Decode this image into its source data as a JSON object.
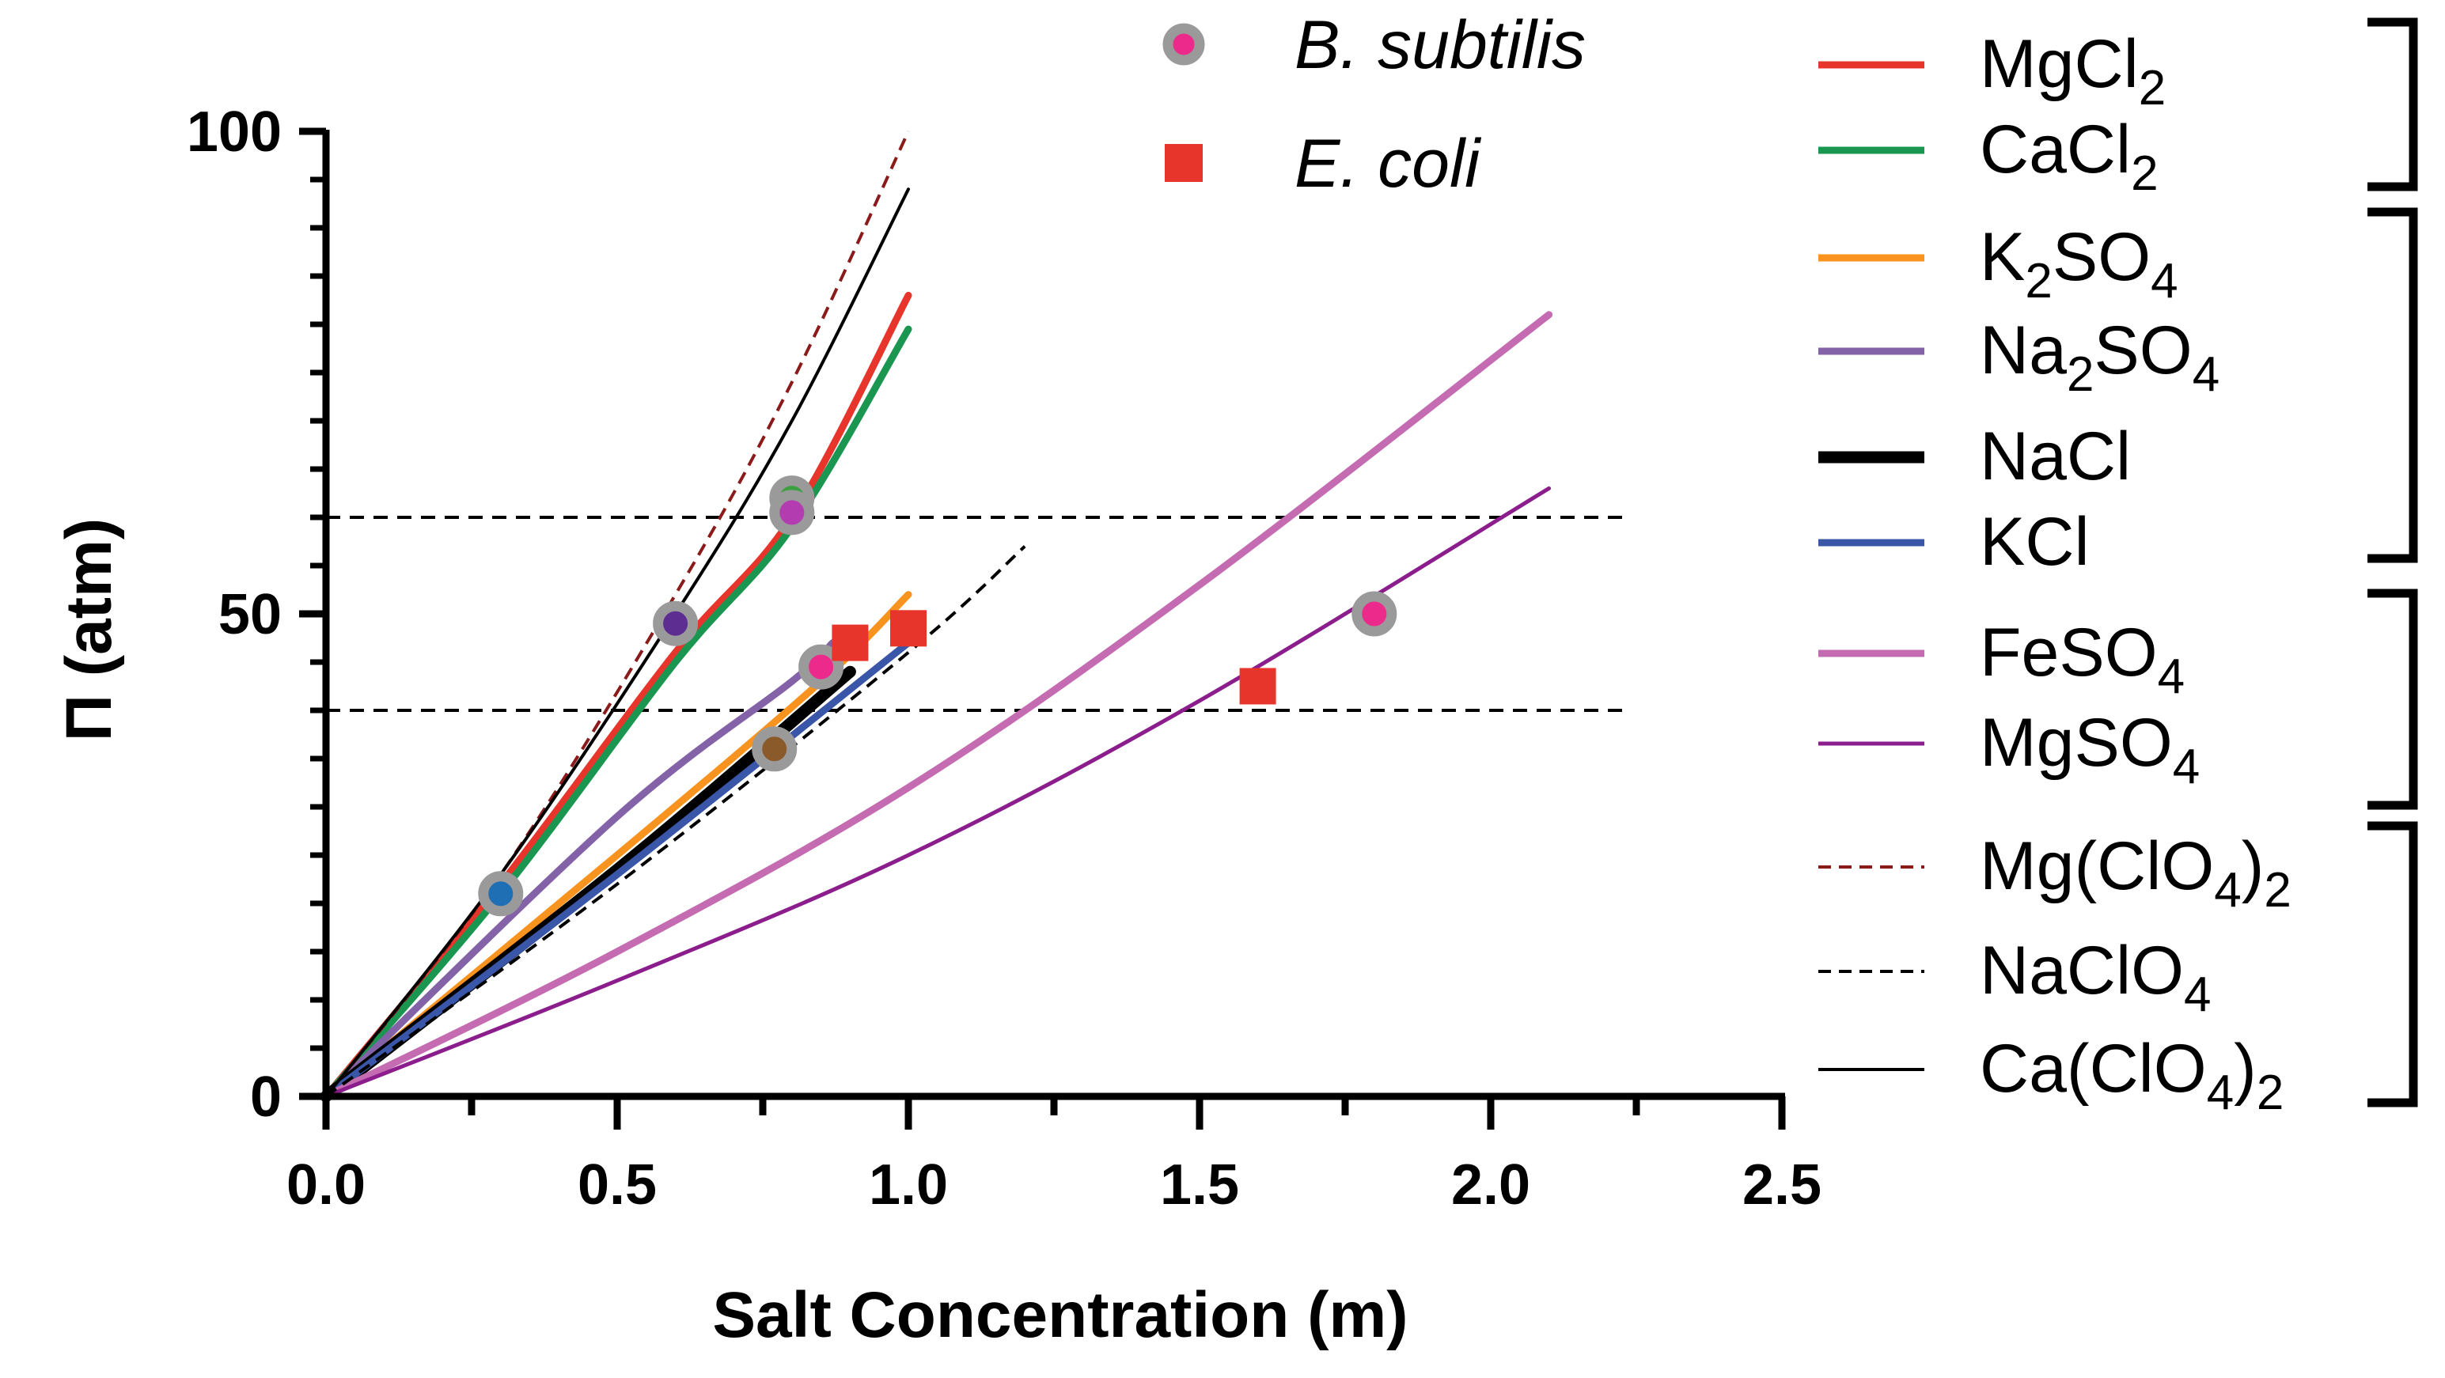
{
  "chart_data": {
    "type": "line",
    "xlabel": "Salt Concentration (m)",
    "ylabel": "Π (atm)",
    "xlim": [
      0,
      2.5
    ],
    "ylim": [
      0,
      100
    ],
    "x_ticks": [
      0.0,
      0.5,
      1.0,
      1.5,
      2.0,
      2.5
    ],
    "x_tick_labels": [
      "0.0",
      "0.5",
      "1.0",
      "1.5",
      "2.0",
      "2.5"
    ],
    "y_ticks": [
      0,
      50,
      100
    ],
    "y_tick_labels": [
      "0",
      "50",
      "100"
    ],
    "reference_lines": [
      60,
      40
    ],
    "series": [
      {
        "name": "MgCl",
        "sub": "2",
        "style": "solid",
        "color": "#e8352b",
        "width": 9,
        "x": [
          0,
          0.3,
          0.6,
          0.8,
          1.0
        ],
        "y": [
          0,
          22,
          46,
          60,
          83
        ]
      },
      {
        "name": "CaCl",
        "sub": "2",
        "style": "solid",
        "color": "#1a9650",
        "width": 9,
        "x": [
          0,
          0.3,
          0.6,
          0.8,
          1.0
        ],
        "y": [
          0,
          21,
          45,
          59,
          79.5
        ]
      },
      {
        "name": "K",
        "sub": "2",
        "tail": "SO",
        "sub2": "4",
        "style": "solid",
        "color": "#f7931e",
        "width": 9,
        "x": [
          0,
          0.5,
          0.85,
          1.0
        ],
        "y": [
          0,
          25,
          43,
          52
        ]
      },
      {
        "name": "Na",
        "sub": "2",
        "tail": "SO",
        "sub2": "4",
        "style": "solid",
        "color": "#8462a8",
        "width": 9,
        "x": [
          0,
          0.5,
          0.8,
          0.87
        ],
        "y": [
          0,
          29,
          43,
          47
        ]
      },
      {
        "name": "NaCl",
        "style": "solid",
        "color": "#000000",
        "width": 15,
        "x": [
          0,
          0.5,
          0.9
        ],
        "y": [
          0,
          23.5,
          44
        ]
      },
      {
        "name": "KCl",
        "style": "solid",
        "color": "#3a56a8",
        "width": 9,
        "x": [
          0,
          0.5,
          1.0
        ],
        "y": [
          0,
          23,
          47
        ]
      },
      {
        "name": "FeSO",
        "sub": "4",
        "style": "solid",
        "color": "#c46bb2",
        "width": 9,
        "x": [
          0,
          0.5,
          1.0,
          1.5,
          2.1
        ],
        "y": [
          0,
          15,
          32,
          53,
          81
        ]
      },
      {
        "name": "MgSO",
        "sub": "4",
        "style": "solid",
        "color": "#8b1e8c",
        "width": 5,
        "x": [
          0,
          0.5,
          1.0,
          1.5,
          2.1
        ],
        "y": [
          0,
          12,
          25,
          41,
          63
        ]
      },
      {
        "name": "Mg(ClO",
        "sub": "4",
        "tail": ")",
        "sub2": "2",
        "style": "dashed",
        "color": "#8b1a1a",
        "width": 4,
        "x": [
          0,
          0.3,
          0.6,
          0.8,
          1.0
        ],
        "y": [
          0,
          23,
          52,
          74,
          100
        ]
      },
      {
        "name": "NaClO",
        "sub": "4",
        "style": "dashed",
        "color": "#000000",
        "width": 4,
        "x": [
          0,
          0.5,
          1.0,
          1.2
        ],
        "y": [
          0,
          22,
          46,
          57
        ]
      },
      {
        "name": "Ca(ClO",
        "sub": "4",
        "tail": ")",
        "sub2": "2",
        "style": "solid",
        "color": "#000000",
        "width": 4,
        "x": [
          0,
          0.3,
          0.6,
          0.8,
          1.0
        ],
        "y": [
          0,
          23,
          50,
          70,
          94
        ]
      }
    ],
    "point_sets": [
      {
        "name": "B. subtilis",
        "marker": "circle",
        "points": [
          {
            "x": 0.3,
            "y": 21,
            "fill": "#1f6fb4"
          },
          {
            "x": 0.6,
            "y": 49,
            "fill": "#5e2d91"
          },
          {
            "x": 0.8,
            "y": 62,
            "fill": "#3aa040"
          },
          {
            "x": 0.8,
            "y": 60.5,
            "fill": "#b33cb0"
          },
          {
            "x": 0.77,
            "y": 36,
            "fill": "#8b5a2b"
          },
          {
            "x": 0.85,
            "y": 44.5,
            "fill": "#ec2a8c"
          },
          {
            "x": 1.8,
            "y": 50,
            "fill": "#ec2a8c"
          }
        ]
      },
      {
        "name": "E. coli",
        "marker": "square",
        "color": "#e8352b",
        "points": [
          {
            "x": 0.9,
            "y": 47
          },
          {
            "x": 1.0,
            "y": 48.5
          },
          {
            "x": 1.6,
            "y": 42.5
          }
        ]
      }
    ],
    "marker_legend": [
      {
        "label": "B. subtilis",
        "marker": "circle",
        "fill": "#ec2a8c"
      },
      {
        "label": "E. coli",
        "marker": "square",
        "fill": "#e8352b"
      }
    ],
    "legend_position": "right",
    "legend_groups": [
      {
        "items": [
          "MgCl2",
          "CaCl2"
        ]
      },
      {
        "items": [
          "K2SO4",
          "Na2SO4",
          "NaCl",
          "KCl"
        ]
      },
      {
        "items": [
          "FeSO4",
          "MgSO4"
        ]
      },
      {
        "items": [
          "Mg(ClO4)2",
          "NaClO4",
          "Ca(ClO4)2"
        ]
      }
    ]
  }
}
